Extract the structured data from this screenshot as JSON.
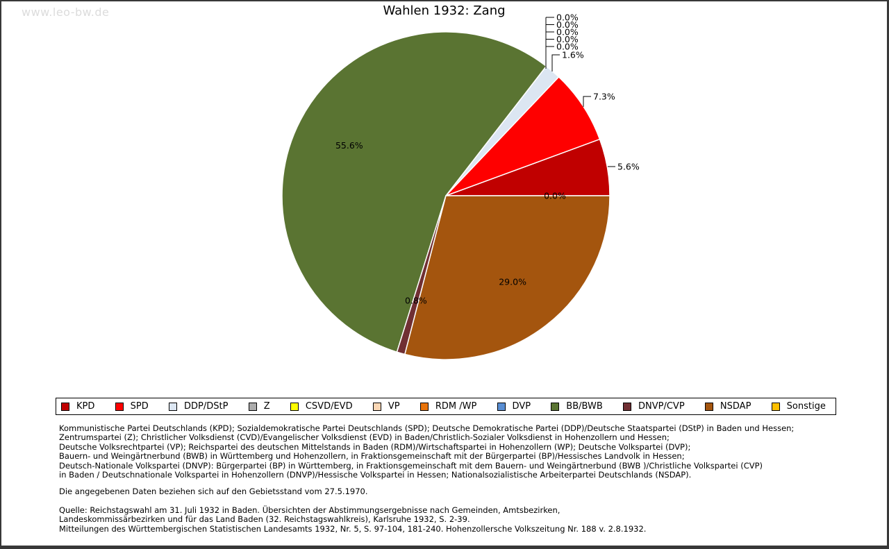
{
  "watermark": "www.leo-bw.de",
  "title": "Wahlen 1932: Zang",
  "chart_data": {
    "type": "pie",
    "title": "Wahlen 1932: Zang",
    "start_angle_deg": 0,
    "direction": "counterclockwise",
    "legend_position": "bottom",
    "slices": [
      {
        "label": "KPD",
        "value_pct": 5.6,
        "display": "5.6%",
        "color": "#c00000",
        "label_placement": "callout"
      },
      {
        "label": "SPD",
        "value_pct": 7.3,
        "display": "7.3%",
        "color": "#fe0000",
        "label_placement": "callout"
      },
      {
        "label": "DDP/DStP",
        "value_pct": 1.6,
        "display": "1.6%",
        "color": "#dce6f2",
        "label_placement": "callout"
      },
      {
        "label": "Z",
        "value_pct": 0.0,
        "display": "0.0%",
        "color": "#ababab",
        "label_placement": "callout"
      },
      {
        "label": "CSVD/EVD",
        "value_pct": 0.0,
        "display": "0.0%",
        "color": "#ffff00",
        "label_placement": "callout"
      },
      {
        "label": "VP",
        "value_pct": 0.0,
        "display": "0.0%",
        "color": "#fbd7b5",
        "label_placement": "callout"
      },
      {
        "label": "RDM /WP",
        "value_pct": 0.0,
        "display": "0.0%",
        "color": "#e8730a",
        "label_placement": "callout"
      },
      {
        "label": "DVP",
        "value_pct": 0.0,
        "display": "0.0%",
        "color": "#598ed3",
        "label_placement": "callout"
      },
      {
        "label": "BB/BWB",
        "value_pct": 55.6,
        "display": "55.6%",
        "color": "#5a7432",
        "label_placement": "inside"
      },
      {
        "label": "DNVP/CVP",
        "value_pct": 0.8,
        "display": "0.8%",
        "color": "#702f33",
        "label_placement": "inside"
      },
      {
        "label": "NSDAP",
        "value_pct": 29.0,
        "display": "29.0%",
        "color": "#a4550e",
        "label_placement": "inside"
      },
      {
        "label": "Sonstige",
        "value_pct": 0.0,
        "display": "0.0%",
        "color": "#ffc000",
        "label_placement": "inside"
      }
    ]
  },
  "notes": {
    "party_explanations": [
      "Kommunistische Partei Deutschlands (KPD); Sozialdemokratische Partei Deutschlands (SPD); Deutsche Demokratische Partei (DDP)/Deutsche Staatspartei (DStP) in Baden und Hessen;",
      "Zentrumspartei (Z); Christlicher Volksdienst (CVD)/Evangelischer Volksdienst (EVD) in Baden/Christlich-Sozialer Volksdienst in Hohenzollern und Hessen;",
      "Deutsche Volksrechtpartei (VP); Reichspartei des deutschen Mittelstands in Baden (RDM)/Wirtschaftspartei in Hohenzollern (WP); Deutsche Volkspartei (DVP);",
      "Bauern- und Weingärtnerbund (BWB) in Württemberg und Hohenzollern, in Fraktionsgemeinschaft mit der Bürgerpartei (BP)/Hessisches Landvolk in Hessen;",
      "Deutsch-Nationale Volkspartei (DNVP): Bürgerpartei (BP) in Württemberg, in Fraktionsgemeinschaft mit dem Bauern- und Weingärtnerbund (BWB )/Christliche Volkspartei (CVP)",
      "in Baden / Deutschnationale Volkspartei in Hohenzollern (DNVP)/Hessische Volkspartei in Hessen; Nationalsozialistische Arbeiterpartei Deutschlands (NSDAP)."
    ],
    "data_note": "Die angegebenen Daten beziehen sich auf den Gebietsstand vom 27.5.1970.",
    "source_lines": [
      "Quelle: Reichstagswahl am 31. Juli 1932 in Baden. Übersichten der Abstimmungsergebnisse nach Gemeinden, Amtsbezirken,",
      "Landeskommissärbezirken und für das Land Baden (32. Reichstagswahlkreis), Karlsruhe 1932, S. 2-39.",
      "Mitteilungen des Württembergischen Statistischen Landesamts 1932, Nr. 5, S. 97-104, 181-240. Hohenzollersche Volkszeitung Nr. 188 v. 2.8.1932."
    ]
  }
}
